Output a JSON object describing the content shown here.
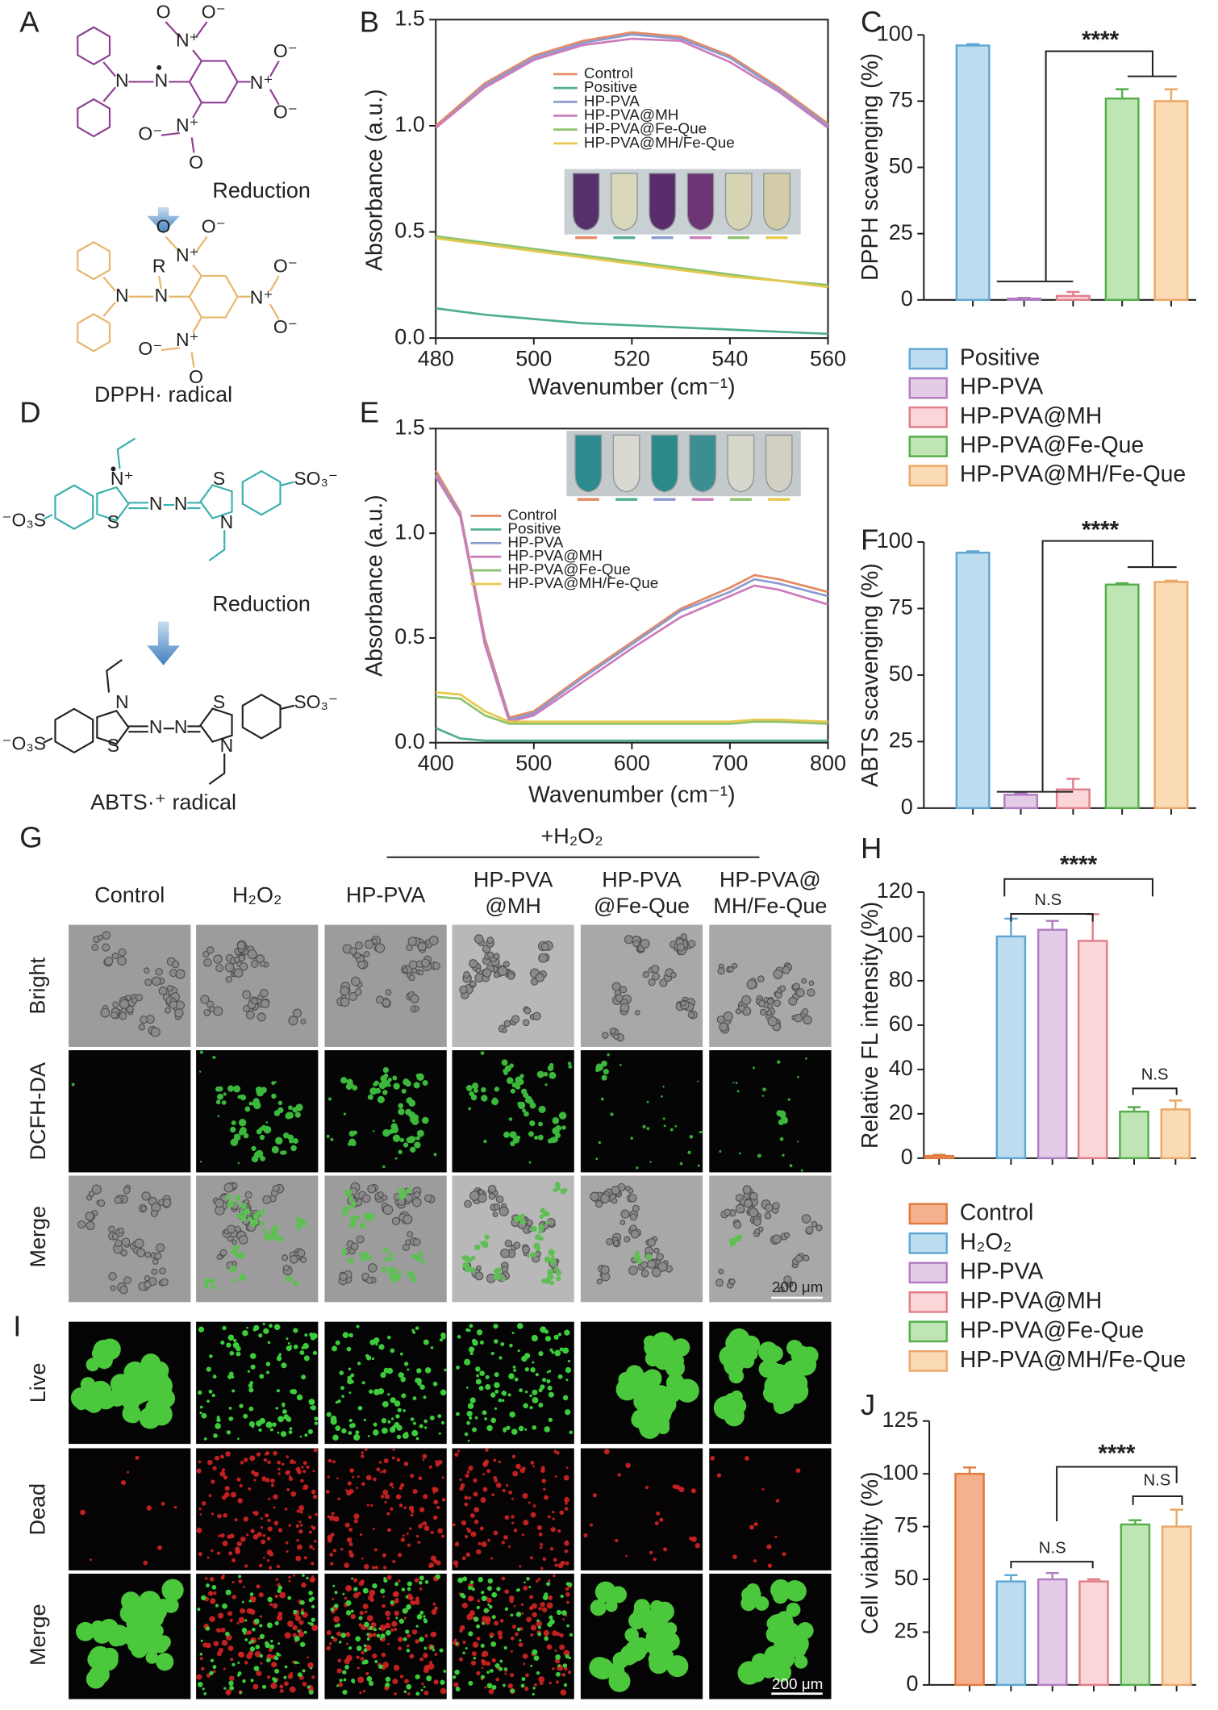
{
  "figure": {
    "panels": [
      "A",
      "B",
      "C",
      "D",
      "E",
      "F",
      "G",
      "H",
      "I",
      "J"
    ],
    "scheme_a": {
      "top_atoms": [
        "N",
        "N",
        "N⁺",
        "O",
        "O⁻",
        "N⁺",
        "O⁻",
        "O⁻",
        "N⁺",
        "O⁻",
        "O"
      ],
      "bottom_atoms": [
        "N",
        "N",
        "R",
        "N⁺",
        "O",
        "O⁻",
        "N⁺",
        "O⁻",
        "O⁻",
        "N⁺",
        "O⁻",
        "O"
      ],
      "reaction": "Reduction",
      "caption": "DPPH· radical"
    },
    "scheme_d": {
      "top_atoms": [
        "⁻O₃S",
        "S",
        "N⁺",
        "N",
        "N",
        "S",
        "N",
        "SO₃⁻"
      ],
      "bottom_atoms": [
        "⁻O₃S",
        "S",
        "N",
        "N",
        "N",
        "S",
        "N",
        "SO₃⁻"
      ],
      "reaction": "Reduction",
      "caption": "ABTS·⁺ radical"
    },
    "panel_g": {
      "treatment": "+H₂O₂",
      "columns": [
        [
          "Control"
        ],
        [
          "H₂O₂"
        ],
        [
          "HP-PVA"
        ],
        [
          "HP-PVA",
          "@MH"
        ],
        [
          "HP-PVA",
          "@Fe-Que"
        ],
        [
          "HP-PVA@",
          "MH/Fe-Que"
        ]
      ],
      "rows": [
        "Bright",
        "DCFH-DA",
        "Merge"
      ],
      "scale_bar": "200 μm"
    },
    "panel_i": {
      "rows": [
        "Live",
        "Dead",
        "Merge"
      ],
      "scale_bar": "200 μm"
    }
  },
  "chart_data": [
    {
      "type": "line",
      "xlabel": "Wavenumber (cm⁻¹)",
      "ylabel": "Absorbance (a.u.)",
      "x": [
        480,
        490,
        500,
        510,
        520,
        530,
        540,
        550,
        560
      ],
      "xlim": [
        480,
        560
      ],
      "ylim": [
        0,
        1.5
      ],
      "xticks": [
        480,
        500,
        520,
        540,
        560
      ],
      "yticks": [
        {
          "value": 0,
          "label": "0.0"
        },
        0.5,
        {
          "value": 1,
          "label": "1.0"
        },
        1.5
      ],
      "legend": "upper center",
      "series": [
        {
          "name": "Control",
          "color": "#e58a62",
          "values": [
            1.0,
            1.2,
            1.33,
            1.4,
            1.44,
            1.42,
            1.33,
            1.18,
            1.01
          ]
        },
        {
          "name": "Positive",
          "color": "#4fae90",
          "values": [
            0.14,
            0.11,
            0.09,
            0.07,
            0.06,
            0.05,
            0.04,
            0.03,
            0.02
          ]
        },
        {
          "name": "HP-PVA",
          "color": "#8b9bd2",
          "values": [
            0.99,
            1.19,
            1.32,
            1.39,
            1.43,
            1.41,
            1.32,
            1.17,
            1.0
          ]
        },
        {
          "name": "HP-PVA@MH",
          "color": "#cc7bbb",
          "values": [
            0.99,
            1.18,
            1.31,
            1.38,
            1.41,
            1.4,
            1.3,
            1.16,
            0.99
          ]
        },
        {
          "name": "HP-PVA@Fe-Que",
          "color": "#8fc26e",
          "values": [
            0.48,
            0.45,
            0.42,
            0.39,
            0.36,
            0.33,
            0.3,
            0.27,
            0.25
          ]
        },
        {
          "name": "HP-PVA@MH/Fe-Que",
          "color": "#e5c94c",
          "values": [
            0.47,
            0.44,
            0.41,
            0.38,
            0.35,
            0.32,
            0.29,
            0.27,
            0.24
          ]
        }
      ]
    },
    {
      "type": "bar",
      "ylabel": "DPPH scavenging (%)",
      "ylim": [
        0,
        100
      ],
      "yticks": [
        0,
        25,
        50,
        75,
        100
      ],
      "legend": "below",
      "series": [
        {
          "name": "Positive",
          "color": "#bddcef",
          "edgecolor": "#5fa6d2",
          "values": [
            96
          ],
          "errors": [
            0.5
          ]
        },
        {
          "name": "HP-PVA",
          "color": "#e4cbe8",
          "edgecolor": "#b07cc0",
          "values": [
            0.5
          ],
          "errors": [
            0.3
          ]
        },
        {
          "name": "HP-PVA@MH",
          "color": "#fad6d9",
          "edgecolor": "#e07d88",
          "values": [
            1.5
          ],
          "errors": [
            1.5
          ]
        },
        {
          "name": "HP-PVA@Fe-Que",
          "color": "#c0e5b4",
          "edgecolor": "#55ad4b",
          "values": [
            76
          ],
          "errors": [
            3.5
          ]
        },
        {
          "name": "HP-PVA@MH/Fe-Que",
          "color": "#fbdab6",
          "edgecolor": "#eaa866",
          "values": [
            75
          ],
          "errors": [
            4.5
          ]
        }
      ],
      "annotations": [
        "****"
      ]
    },
    {
      "type": "line",
      "xlabel": "Wavenumber (cm⁻¹)",
      "ylabel": "Absorbance (a.u.)",
      "x": [
        400,
        425,
        450,
        475,
        500,
        550,
        600,
        650,
        700,
        725,
        750,
        800
      ],
      "xlim": [
        400,
        800
      ],
      "ylim": [
        0,
        1.5
      ],
      "xticks": [
        400,
        500,
        600,
        700,
        800
      ],
      "yticks": [
        {
          "value": 0,
          "label": "0.0"
        },
        0.5,
        {
          "value": 1,
          "label": "1.0"
        },
        1.5
      ],
      "legend": "upper left",
      "series": [
        {
          "name": "Control",
          "color": "#e58a62",
          "values": [
            1.3,
            1.1,
            0.5,
            0.12,
            0.15,
            0.32,
            0.48,
            0.64,
            0.74,
            0.8,
            0.78,
            0.72
          ]
        },
        {
          "name": "Positive",
          "color": "#4fae90",
          "values": [
            0.07,
            0.02,
            0.01,
            0.01,
            0.01,
            0.01,
            0.01,
            0.01,
            0.01,
            0.01,
            0.01,
            0.01
          ]
        },
        {
          "name": "HP-PVA",
          "color": "#8b9bd2",
          "values": [
            1.28,
            1.09,
            0.48,
            0.11,
            0.14,
            0.31,
            0.47,
            0.63,
            0.72,
            0.78,
            0.76,
            0.7
          ]
        },
        {
          "name": "HP-PVA@MH",
          "color": "#cc7bbb",
          "values": [
            1.27,
            1.08,
            0.47,
            0.1,
            0.13,
            0.29,
            0.45,
            0.6,
            0.7,
            0.75,
            0.73,
            0.66
          ]
        },
        {
          "name": "HP-PVA@Fe-Que",
          "color": "#8fc26e",
          "values": [
            0.22,
            0.21,
            0.13,
            0.09,
            0.09,
            0.09,
            0.09,
            0.09,
            0.09,
            0.1,
            0.1,
            0.09
          ]
        },
        {
          "name": "HP-PVA@MH/Fe-Que",
          "color": "#e5c94c",
          "values": [
            0.24,
            0.23,
            0.15,
            0.1,
            0.1,
            0.1,
            0.1,
            0.1,
            0.1,
            0.11,
            0.11,
            0.1
          ]
        }
      ]
    },
    {
      "type": "bar",
      "ylabel": "ABTS scavenging (%)",
      "ylim": [
        0,
        100
      ],
      "yticks": [
        0,
        25,
        50,
        75,
        100
      ],
      "values": [
        96,
        5,
        7,
        84,
        85
      ],
      "errors": [
        0.5,
        0.5,
        4,
        0.5,
        0.5
      ],
      "colors": [
        "#bddcef",
        "#e4cbe8",
        "#fad6d9",
        "#c0e5b4",
        "#fbdab6"
      ],
      "edgecolors": [
        "#5fa6d2",
        "#b07cc0",
        "#e07d88",
        "#55ad4b",
        "#eaa866"
      ],
      "annotations": [
        "****"
      ]
    },
    {
      "type": "bar",
      "ylabel": "Relative FL intensity (%)",
      "ylim": [
        0,
        120
      ],
      "yticks": [
        0,
        20,
        40,
        60,
        80,
        100,
        120
      ],
      "legend": "below",
      "series": [
        {
          "name": "Control",
          "color": "#f5b08d",
          "edgecolor": "#e07a40",
          "values": [
            1
          ],
          "errors": [
            0.5
          ]
        },
        {
          "name": "H₂O₂",
          "color": "#bddcef",
          "edgecolor": "#5fa6d2",
          "values": [
            100
          ],
          "errors": [
            8
          ]
        },
        {
          "name": "HP-PVA",
          "color": "#e4cbe8",
          "edgecolor": "#b07cc0",
          "values": [
            103
          ],
          "errors": [
            4
          ]
        },
        {
          "name": "HP-PVA@MH",
          "color": "#fad6d9",
          "edgecolor": "#e07d88",
          "values": [
            98
          ],
          "errors": [
            12
          ]
        },
        {
          "name": "HP-PVA@Fe-Que",
          "color": "#c0e5b4",
          "edgecolor": "#55ad4b",
          "values": [
            21
          ],
          "errors": [
            2
          ]
        },
        {
          "name": "HP-PVA@MH/Fe-Que",
          "color": "#fbdab6",
          "edgecolor": "#eaa866",
          "values": [
            22
          ],
          "errors": [
            4
          ]
        }
      ],
      "annotations": [
        "N.S",
        "****",
        "N.S"
      ]
    },
    {
      "type": "bar",
      "ylabel": "Cell viability (%)",
      "ylim": [
        0,
        125
      ],
      "yticks": [
        0,
        25,
        50,
        75,
        100,
        125
      ],
      "values": [
        100,
        49,
        50,
        49,
        76,
        75
      ],
      "errors": [
        3,
        3,
        3,
        1,
        2,
        8
      ],
      "colors": [
        "#f5b08d",
        "#bddcef",
        "#e4cbe8",
        "#fad6d9",
        "#c0e5b4",
        "#fbdab6"
      ],
      "edgecolors": [
        "#e07a40",
        "#5fa6d2",
        "#b07cc0",
        "#e07d88",
        "#55ad4b",
        "#eaa866"
      ],
      "annotations": [
        "N.S",
        "****",
        "N.S"
      ]
    }
  ]
}
